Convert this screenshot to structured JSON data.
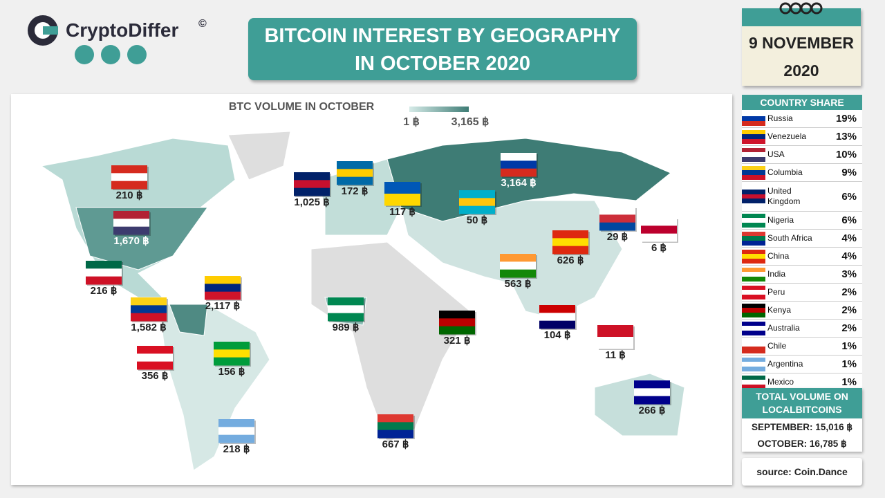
{
  "header": {
    "brand": "CryptoDiffer",
    "copyright": "©",
    "title_lines": [
      "BITCOIN INTEREST BY GEOGRAPHY",
      "IN OCTOBER 2020"
    ],
    "date_lines": [
      "9 NOVEMBER",
      "2020"
    ]
  },
  "legend": {
    "title": "BTC VOLUME IN OCTOBER",
    "min": "1 ฿",
    "max": "3,165 ฿"
  },
  "markers": [
    {
      "country": "Canada",
      "label": "210 ฿"
    },
    {
      "country": "USA",
      "label": "1,670 ฿"
    },
    {
      "country": "Mexico",
      "label": "216 ฿"
    },
    {
      "country": "Venezuela",
      "label": "2,117 ฿"
    },
    {
      "country": "Colombia",
      "label": "1,582 ฿"
    },
    {
      "country": "Peru",
      "label": "356 ฿"
    },
    {
      "country": "Brazil",
      "label": "156 ฿"
    },
    {
      "country": "Argentina",
      "label": "218 ฿"
    },
    {
      "country": "United Kingdom",
      "label": "1,025 ฿"
    },
    {
      "country": "Sweden",
      "label": "172 ฿"
    },
    {
      "country": "Ukraine",
      "label": "117 ฿"
    },
    {
      "country": "Russia",
      "label": "3,164 ฿"
    },
    {
      "country": "Kazakhstan",
      "label": "50 ฿"
    },
    {
      "country": "South Korea",
      "label": "29 ฿"
    },
    {
      "country": "Japan",
      "label": "6 ฿"
    },
    {
      "country": "China",
      "label": "626 ฿"
    },
    {
      "country": "India",
      "label": "563 ฿"
    },
    {
      "country": "Malaysia",
      "label": "104 ฿"
    },
    {
      "country": "Indonesia",
      "label": "11 ฿"
    },
    {
      "country": "Nigeria",
      "label": "989 ฿"
    },
    {
      "country": "Kenya",
      "label": "321 ฿"
    },
    {
      "country": "South Africa",
      "label": "667 ฿"
    },
    {
      "country": "Australia",
      "label": "266 ฿"
    }
  ],
  "country_share": {
    "title": "COUNTRY SHARE",
    "rows": [
      [
        "Russia",
        "19%"
      ],
      [
        "Venezuela",
        "13%"
      ],
      [
        "USA",
        "10%"
      ],
      [
        "Columbia",
        "9%"
      ],
      [
        "United Kingdom",
        "6%"
      ],
      [
        "Nigeria",
        "6%"
      ],
      [
        "South Africa",
        "4%"
      ],
      [
        "China",
        "4%"
      ],
      [
        "India",
        "3%"
      ],
      [
        "Peru",
        "2%"
      ],
      [
        "Kenya",
        "2%"
      ],
      [
        "Australia",
        "2%"
      ],
      [
        "Chile",
        "1%"
      ],
      [
        "Argentina",
        "1%"
      ],
      [
        "Mexico",
        "1%"
      ]
    ]
  },
  "total": {
    "title": "TOTAL VOLUME ON LOCALBITCOINS",
    "rows": [
      "SEPTEMBER: 15,016 ฿",
      "OCTOBER: 16,785 ฿"
    ]
  },
  "source": "source: Coin.Dance"
}
